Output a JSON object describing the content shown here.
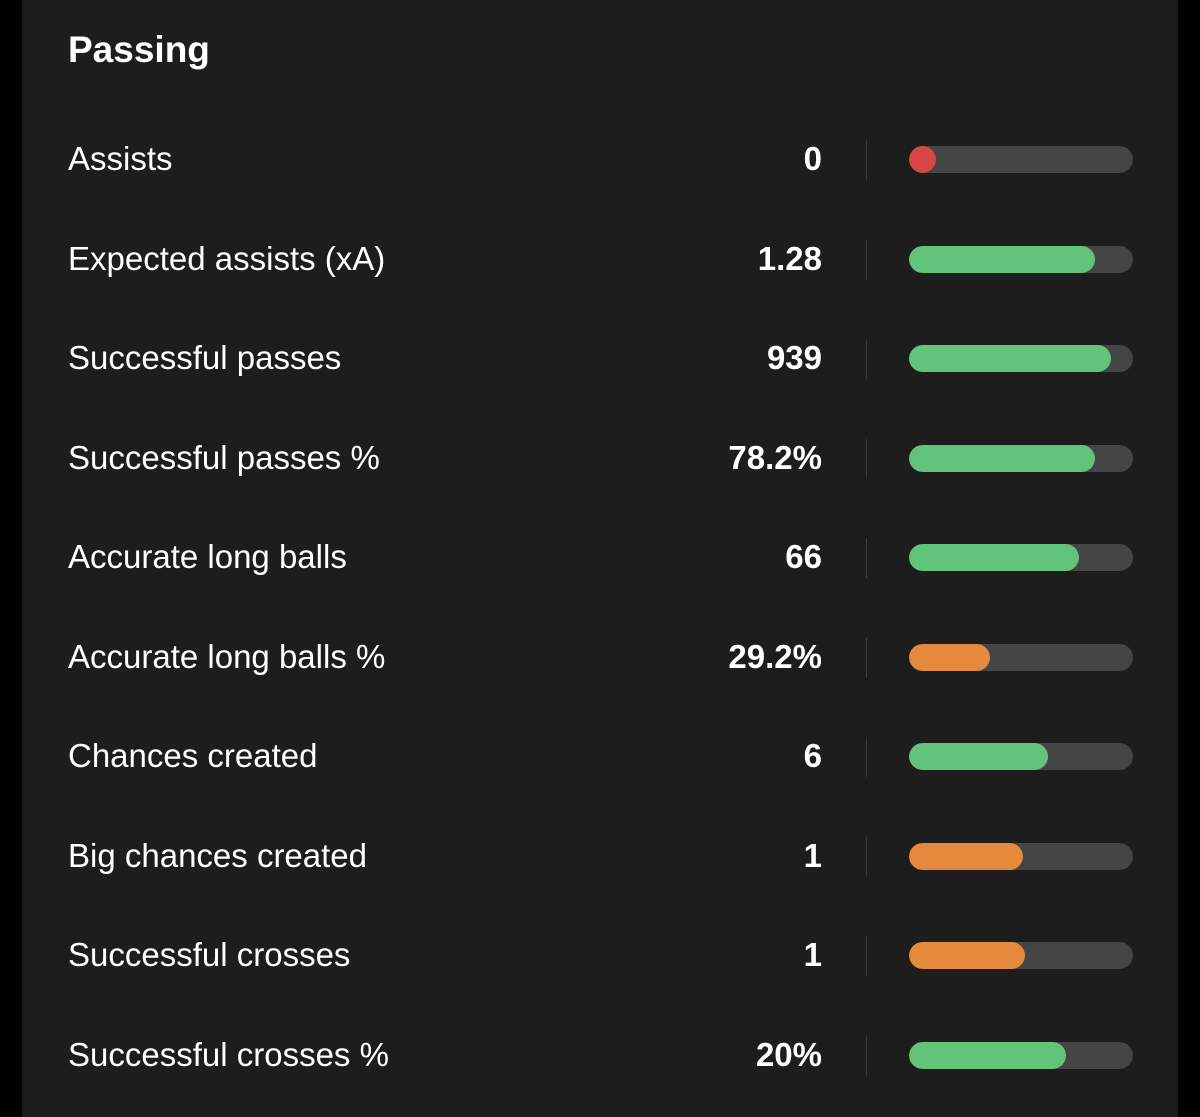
{
  "section": {
    "title": "Passing"
  },
  "colors": {
    "good": "#62c47a",
    "average": "#e58a3c",
    "poor": "#d94444",
    "track": "#454545",
    "panel": "#1d1d1d",
    "text": "#ffffff"
  },
  "stats": [
    {
      "label": "Assists",
      "value": "0",
      "level": 0.06,
      "rating": "poor"
    },
    {
      "label": "Expected assists (xA)",
      "value": "1.28",
      "level": 0.83,
      "rating": "good"
    },
    {
      "label": "Successful passes",
      "value": "939",
      "level": 0.9,
      "rating": "good"
    },
    {
      "label": "Successful passes %",
      "value": "78.2%",
      "level": 0.83,
      "rating": "good"
    },
    {
      "label": "Accurate long balls",
      "value": "66",
      "level": 0.76,
      "rating": "good"
    },
    {
      "label": "Accurate long balls %",
      "value": "29.2%",
      "level": 0.36,
      "rating": "average"
    },
    {
      "label": "Chances created",
      "value": "6",
      "level": 0.62,
      "rating": "good"
    },
    {
      "label": "Big chances created",
      "value": "1",
      "level": 0.51,
      "rating": "average"
    },
    {
      "label": "Successful crosses",
      "value": "1",
      "level": 0.52,
      "rating": "average"
    },
    {
      "label": "Successful crosses %",
      "value": "20%",
      "level": 0.7,
      "rating": "good"
    }
  ]
}
